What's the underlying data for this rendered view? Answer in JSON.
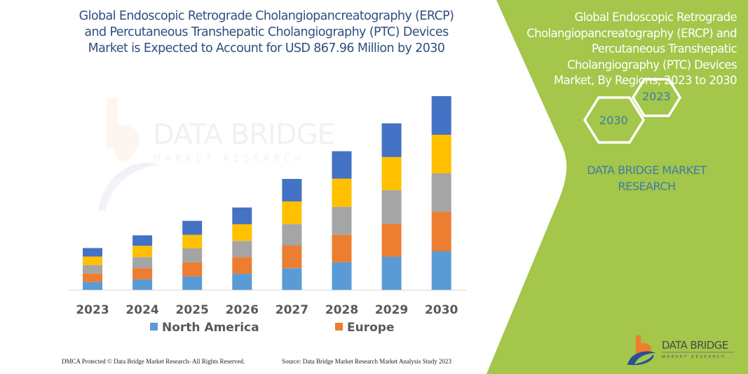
{
  "chart_data": {
    "type": "bar",
    "stacked": true,
    "title": "Global Endoscopic Retrograde Cholangiopancreatography (ERCP) and Percutaneous Transhepatic Cholangiography (PTC) Devices Market is Expected to Account for USD 867.96 Million by 2030",
    "xlabel": "",
    "ylabel": "",
    "unit": "USD Million (estimated)",
    "categories": [
      "2023",
      "2024",
      "2025",
      "2026",
      "2027",
      "2028",
      "2029",
      "2030"
    ],
    "series": [
      {
        "name": "North America",
        "color": "#5b9bd5",
        "values": [
          35,
          47,
          60,
          72,
          97,
          123,
          148,
          173
        ],
        "in_legend": true
      },
      {
        "name": "Europe",
        "color": "#ed7d31",
        "values": [
          38,
          50,
          63,
          75,
          101,
          123,
          148,
          176
        ],
        "in_legend": true
      },
      {
        "name": "",
        "color": "#a5a5a5",
        "values": [
          38,
          50,
          63,
          72,
          97,
          126,
          151,
          173
        ],
        "in_legend": false
      },
      {
        "name": "",
        "color": "#ffc000",
        "values": [
          38,
          50,
          60,
          75,
          101,
          126,
          148,
          173
        ],
        "in_legend": false
      },
      {
        "name": "",
        "color": "#4472c4",
        "values": [
          38,
          47,
          63,
          75,
          101,
          123,
          151,
          173
        ],
        "in_legend": false
      }
    ],
    "ylim": [
      0,
      868
    ],
    "grid": false,
    "legend_position": "bottom",
    "legend": [
      "North America",
      "Europe"
    ]
  },
  "watermark": {
    "line1": "DATA BRIDGE",
    "line2": "MARKET RESEARCH"
  },
  "panel": {
    "title": "Global Endoscopic Retrograde Cholangiopancreatography (ERCP) and Percutaneous Transhepatic Cholangiography (PTC) Devices Market, By Regions, 2023 to 2030",
    "hex_start": "2023",
    "hex_end": "2030",
    "brand": "DATA BRIDGE MARKET RESEARCH",
    "logo_line1": "DATA BRIDGE",
    "logo_line2": "MARKET RESEARCH",
    "green_color": "#a3c64b"
  },
  "footer": {
    "copyright": "DMCA Protected © Data Bridge Market Research-  All Rights Reserved.",
    "source": "Source: Data Bridge Market Research  Market Analysis Study 2023"
  }
}
